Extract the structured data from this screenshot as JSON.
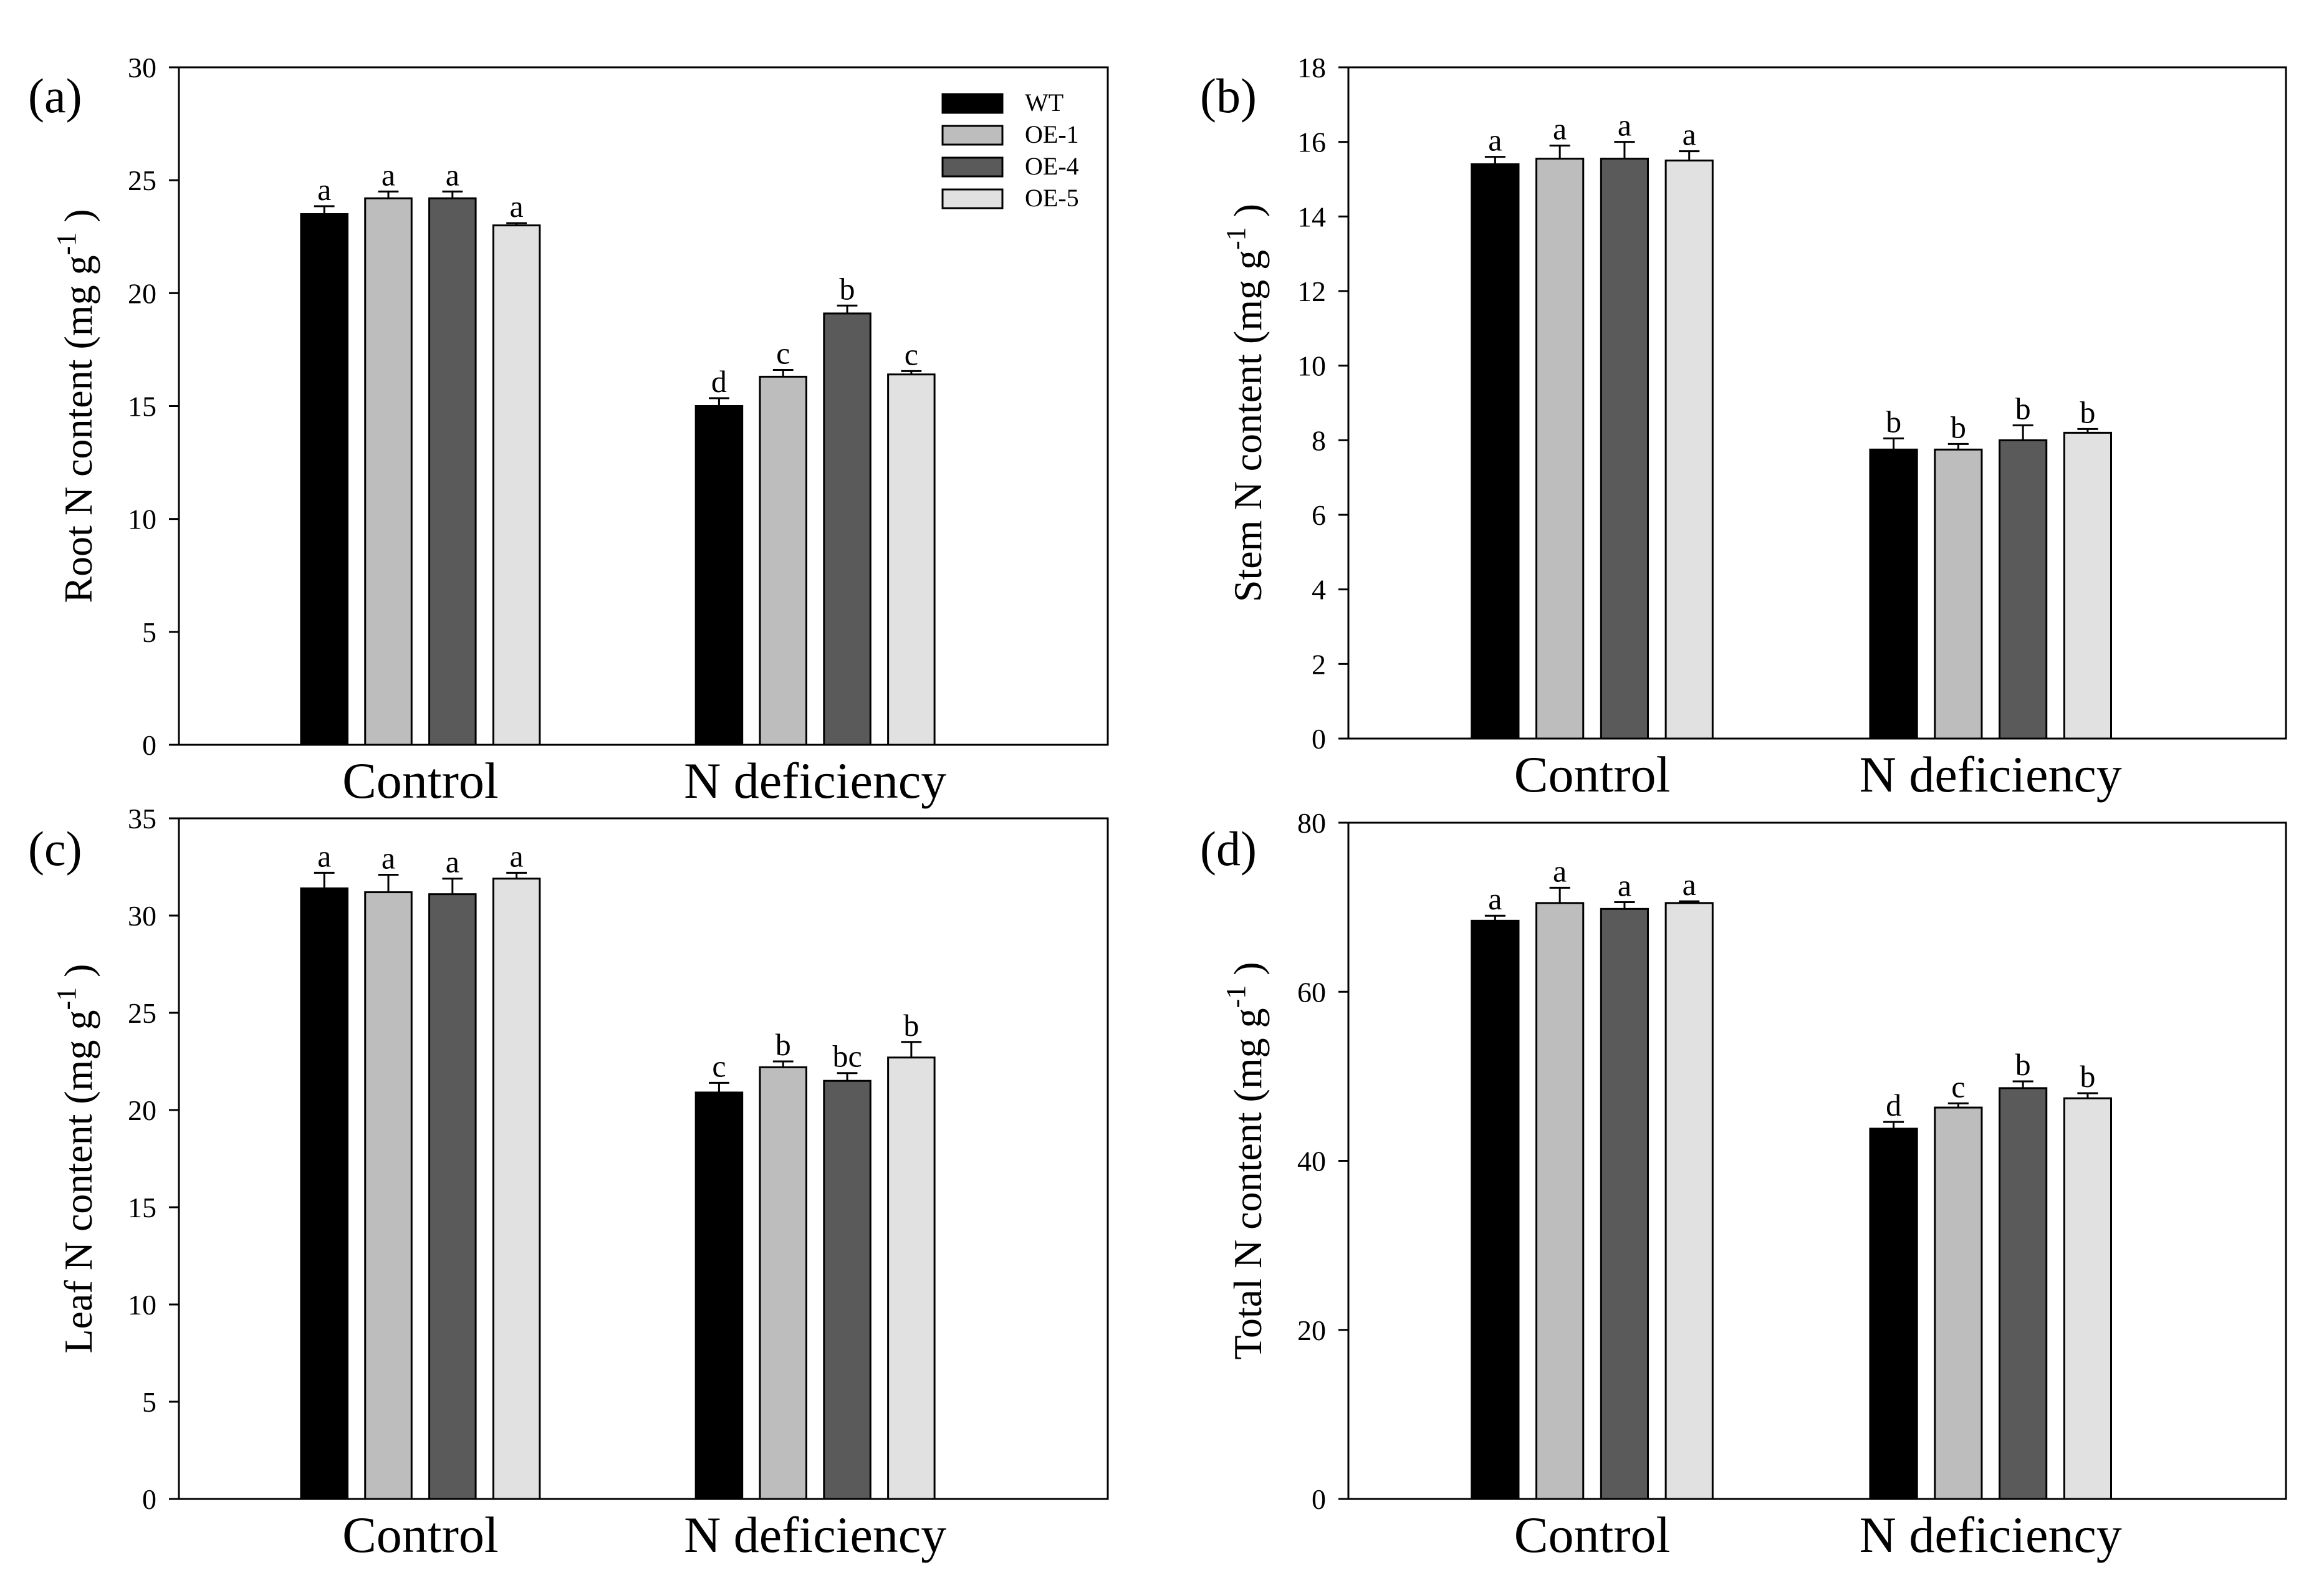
{
  "legend": {
    "series": [
      "WT",
      "OE-1",
      "OE-4",
      "OE-5"
    ],
    "colors": [
      "#000000",
      "#bdbdbd",
      "#5a5a5a",
      "#e1e1e1"
    ]
  },
  "chart_data": [
    {
      "type": "bar",
      "panel_label": "(a)",
      "ylabel_main": "Root N content (mg g",
      "ylabel_sup": "-1",
      "ylabel_close": ")",
      "categories": [
        "Control",
        "N deficiency"
      ],
      "ylim": [
        0,
        30
      ],
      "yticks": [
        0,
        5,
        10,
        15,
        20,
        25,
        30
      ],
      "legend": true,
      "series": [
        {
          "name": "WT",
          "values": [
            23.5,
            15.0
          ],
          "errors": [
            0.35,
            0.35
          ],
          "letters": [
            "a",
            "d"
          ]
        },
        {
          "name": "OE-1",
          "values": [
            24.2,
            16.3
          ],
          "errors": [
            0.3,
            0.3
          ],
          "letters": [
            "a",
            "c"
          ]
        },
        {
          "name": "OE-4",
          "values": [
            24.2,
            19.1
          ],
          "errors": [
            0.3,
            0.35
          ],
          "letters": [
            "a",
            "b"
          ]
        },
        {
          "name": "OE-5",
          "values": [
            23.0,
            16.4
          ],
          "errors": [
            0.1,
            0.15
          ],
          "letters": [
            "a",
            "c"
          ]
        }
      ]
    },
    {
      "type": "bar",
      "panel_label": "(b)",
      "ylabel_main": "Stem N content (mg g",
      "ylabel_sup": "-1",
      "ylabel_close": ")",
      "categories": [
        "Control",
        "N deficiency"
      ],
      "ylim": [
        0,
        18
      ],
      "yticks": [
        0,
        2,
        4,
        6,
        8,
        10,
        12,
        14,
        16,
        18
      ],
      "legend": false,
      "series": [
        {
          "name": "WT",
          "values": [
            15.4,
            7.75
          ],
          "errors": [
            0.2,
            0.3
          ],
          "letters": [
            "a",
            "b"
          ]
        },
        {
          "name": "OE-1",
          "values": [
            15.55,
            7.75
          ],
          "errors": [
            0.35,
            0.15
          ],
          "letters": [
            "a",
            "b"
          ]
        },
        {
          "name": "OE-4",
          "values": [
            15.55,
            8.0
          ],
          "errors": [
            0.45,
            0.4
          ],
          "letters": [
            "a",
            "b"
          ]
        },
        {
          "name": "OE-5",
          "values": [
            15.5,
            8.2
          ],
          "errors": [
            0.25,
            0.1
          ],
          "letters": [
            "a",
            "b"
          ]
        }
      ]
    },
    {
      "type": "bar",
      "panel_label": "(c)",
      "ylabel_main": "Leaf  N content (mg g",
      "ylabel_sup": "-1",
      "ylabel_close": ")",
      "categories": [
        "Control",
        "N deficiency"
      ],
      "ylim": [
        0,
        35
      ],
      "yticks": [
        0,
        5,
        10,
        15,
        20,
        25,
        30,
        35
      ],
      "legend": false,
      "series": [
        {
          "name": "WT",
          "values": [
            31.4,
            20.9
          ],
          "errors": [
            0.8,
            0.5
          ],
          "letters": [
            "a",
            "c"
          ]
        },
        {
          "name": "OE-1",
          "values": [
            31.2,
            22.2
          ],
          "errors": [
            0.9,
            0.3
          ],
          "letters": [
            "a",
            "b"
          ]
        },
        {
          "name": "OE-4",
          "values": [
            31.1,
            21.5
          ],
          "errors": [
            0.8,
            0.4
          ],
          "letters": [
            "a",
            "bc"
          ]
        },
        {
          "name": "OE-5",
          "values": [
            31.9,
            22.7
          ],
          "errors": [
            0.3,
            0.8
          ],
          "letters": [
            "a",
            "b"
          ]
        }
      ]
    },
    {
      "type": "bar",
      "panel_label": "(d)",
      "ylabel_main": "Total N content (mg g",
      "ylabel_sup": "-1",
      "ylabel_close": ")",
      "categories": [
        "Control",
        "N deficiency"
      ],
      "ylim": [
        0,
        80
      ],
      "yticks": [
        0,
        20,
        40,
        60,
        80
      ],
      "legend": false,
      "series": [
        {
          "name": "WT",
          "values": [
            68.4,
            43.8
          ],
          "errors": [
            0.6,
            0.8
          ],
          "letters": [
            "a",
            "d"
          ]
        },
        {
          "name": "OE-1",
          "values": [
            70.5,
            46.3
          ],
          "errors": [
            1.8,
            0.5
          ],
          "letters": [
            "a",
            "c"
          ]
        },
        {
          "name": "OE-4",
          "values": [
            69.8,
            48.6
          ],
          "errors": [
            0.8,
            0.8
          ],
          "letters": [
            "a",
            "b"
          ]
        },
        {
          "name": "OE-5",
          "values": [
            70.5,
            47.4
          ],
          "errors": [
            0.2,
            0.6
          ],
          "letters": [
            "a",
            "b"
          ]
        }
      ]
    }
  ]
}
